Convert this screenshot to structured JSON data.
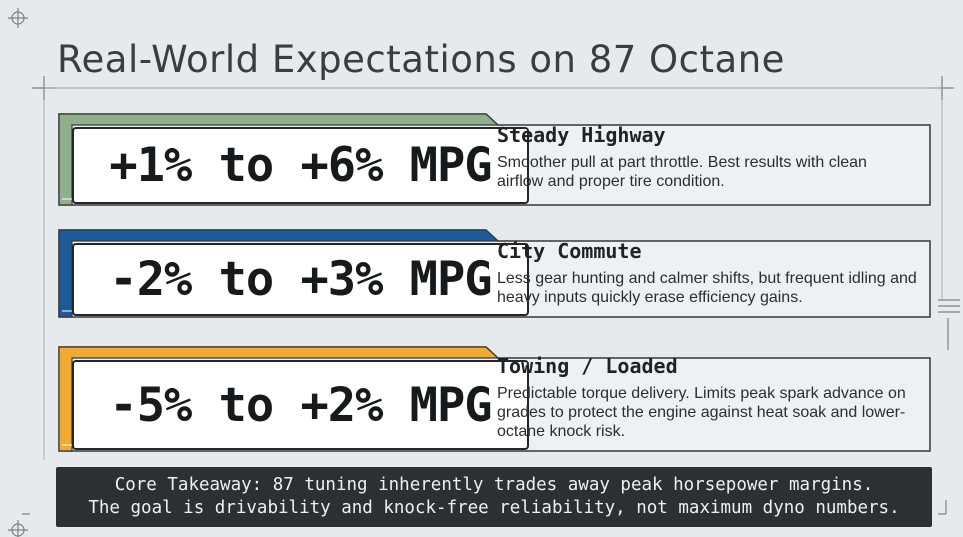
{
  "title": "Real-World Expectations on 87 Octane",
  "cards": [
    {
      "stat": "+1% to +6% MPG",
      "heading": "Steady Highway",
      "body": "Smoother pull at part throttle. Best results with clean airflow and proper tire condition.",
      "accent": "#8fb08a"
    },
    {
      "stat": "-2% to +3% MPG",
      "heading": "City Commute",
      "body": "Less gear hunting and calmer shifts, but frequent idling and heavy inputs quickly erase efficiency gains.",
      "accent": "#1f5a98"
    },
    {
      "stat": "-5% to +2% MPG",
      "heading": "Towing / Loaded",
      "body": "Predictable torque delivery. Limits peak spark advance on grades to protect the engine against heat soak and lower-octane knock risk.",
      "accent": "#f1ab35"
    }
  ],
  "takeaway": {
    "line1": "Core Takeaway: 87 tuning inherently trades away peak horsepower margins.",
    "line2": "The goal is drivability and knock-free reliability, not maximum dyno numbers."
  },
  "icons": [
    "crosshair-icon"
  ]
}
